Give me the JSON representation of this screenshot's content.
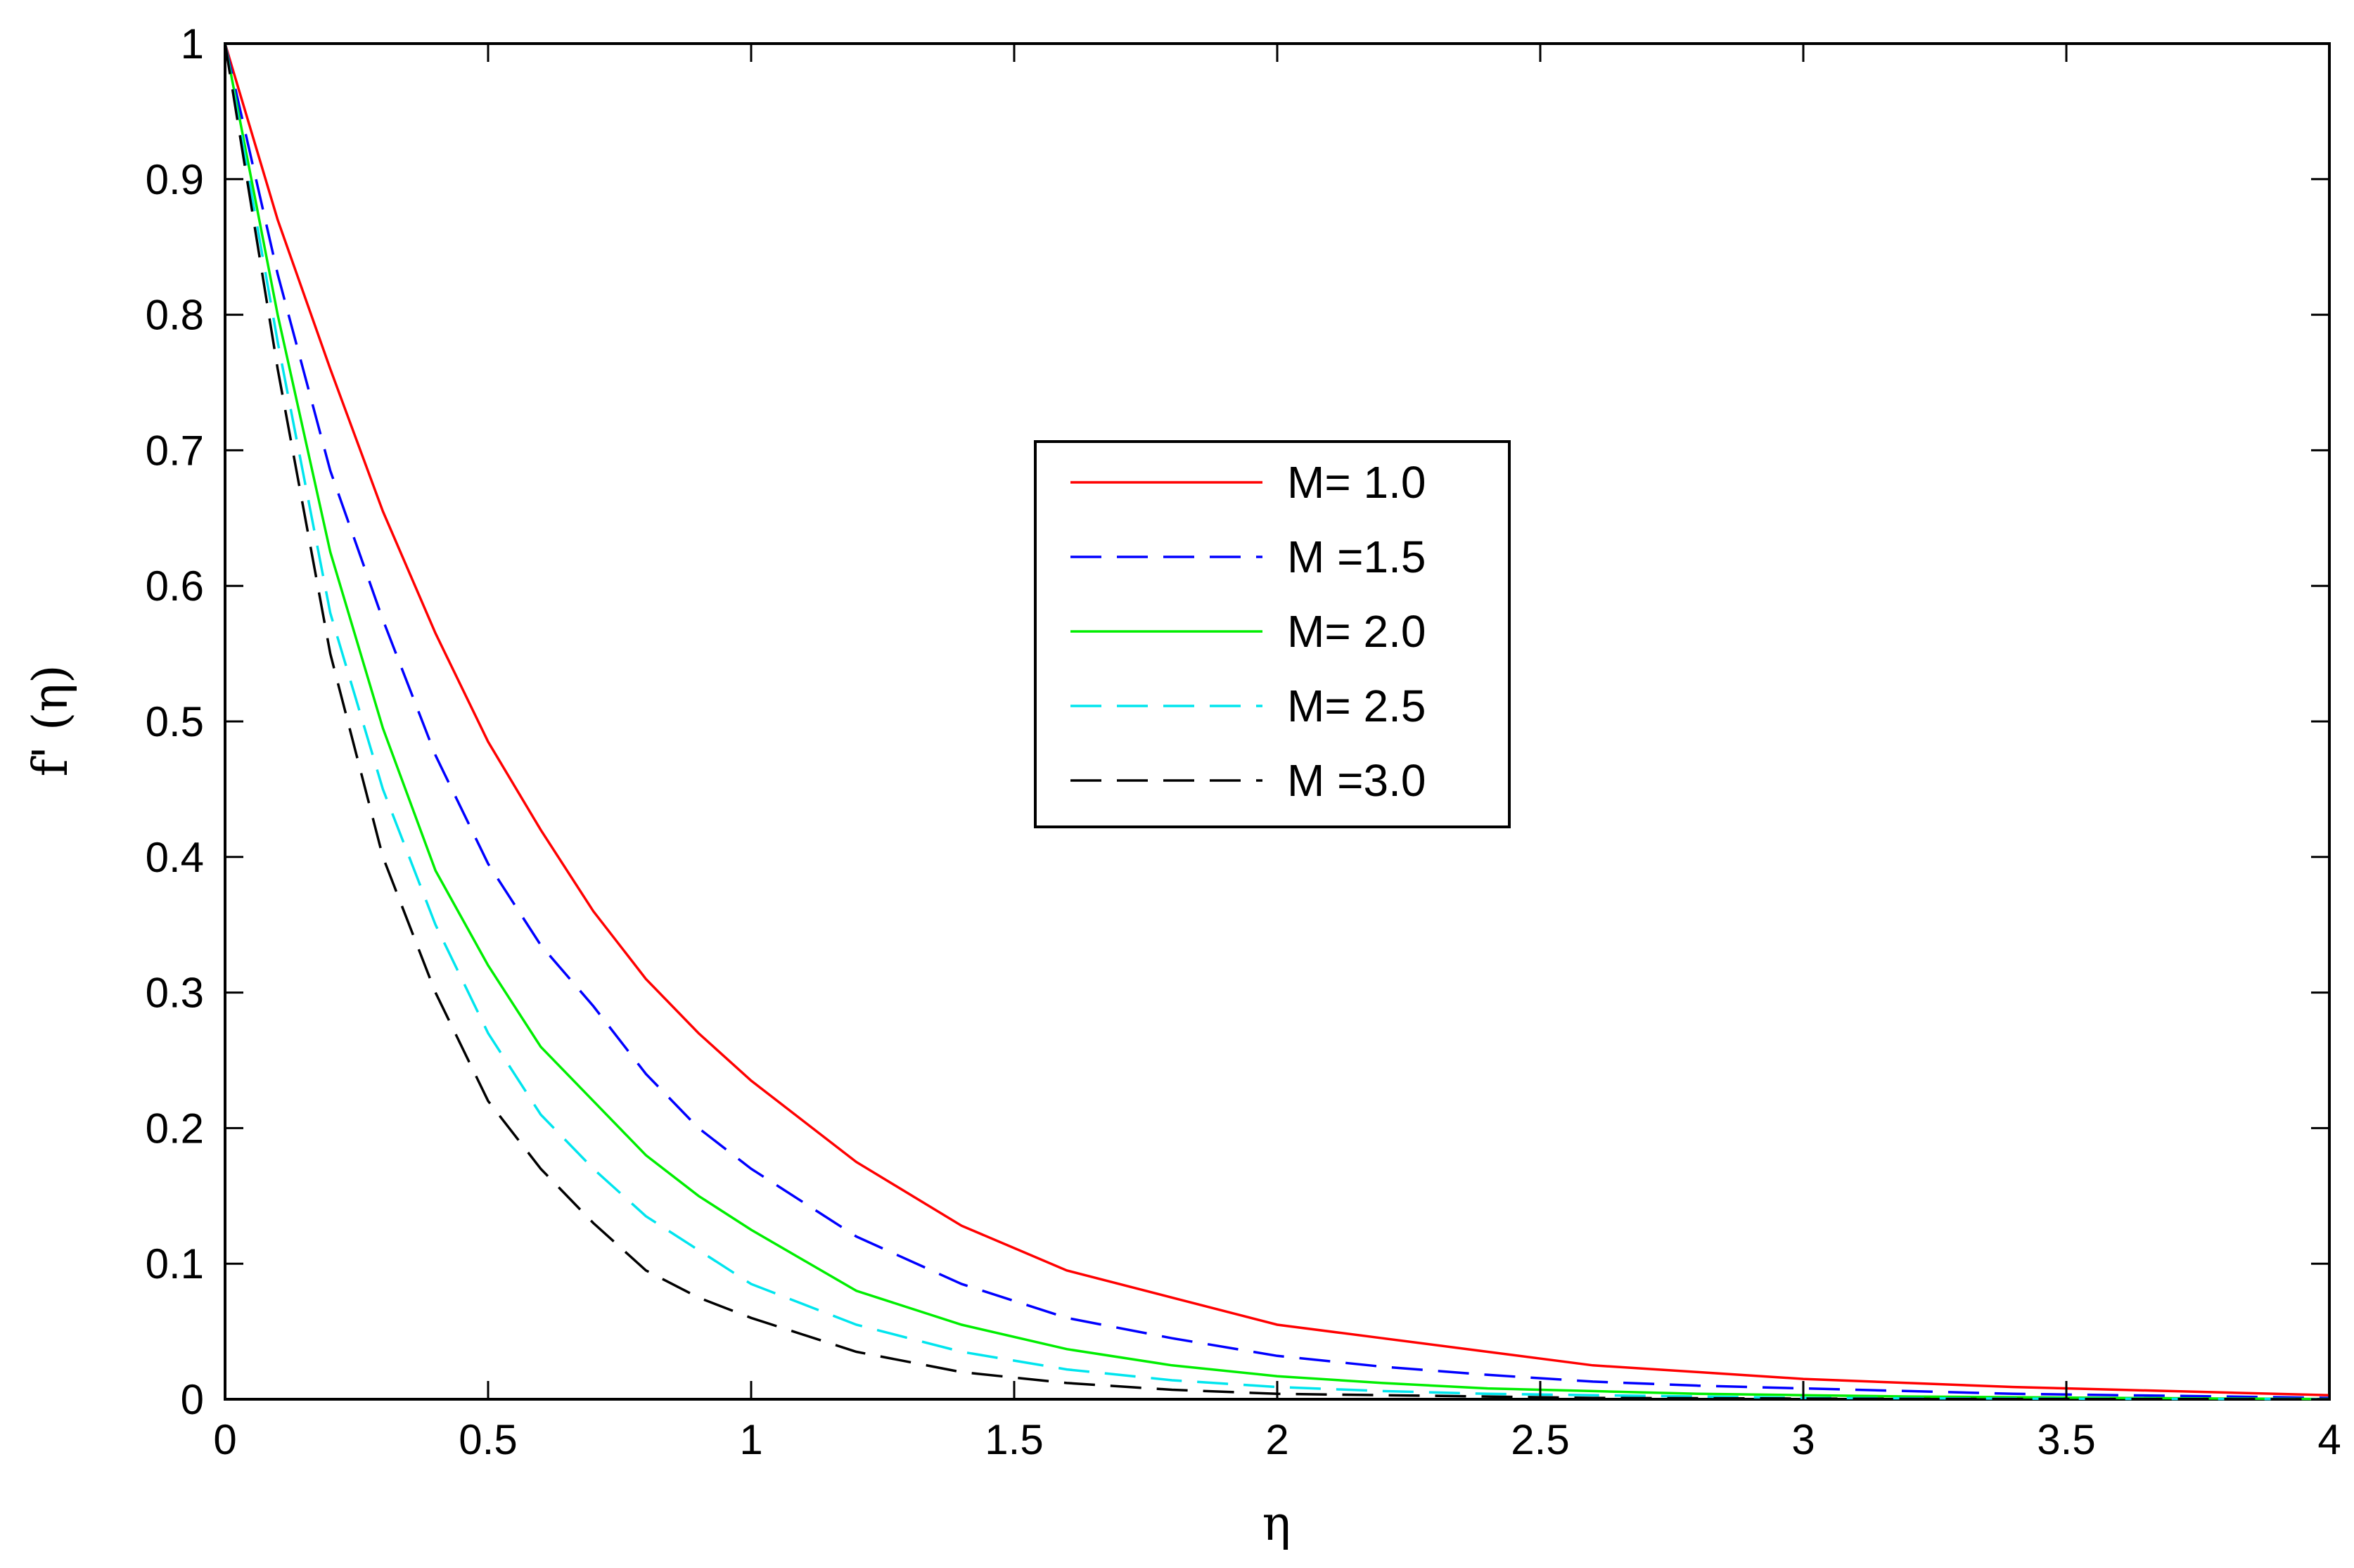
{
  "chart_data": {
    "type": "line",
    "title": "",
    "xlabel": "η",
    "ylabel": "f' (η)",
    "xlim": [
      0,
      4
    ],
    "ylim": [
      0,
      1
    ],
    "xticks": [
      0,
      0.5,
      1,
      1.5,
      2,
      2.5,
      3,
      3.5,
      4
    ],
    "xtick_labels": [
      "0",
      "0.5",
      "1",
      "1.5",
      "2",
      "2.5",
      "3",
      "3.5",
      "4"
    ],
    "yticks": [
      0,
      0.1,
      0.2,
      0.3,
      0.4,
      0.5,
      0.6,
      0.7,
      0.8,
      0.9,
      1
    ],
    "ytick_labels": [
      "0",
      "0.1",
      "0.2",
      "0.3",
      "0.4",
      "0.5",
      "0.6",
      "0.7",
      "0.8",
      "0.9",
      "1"
    ],
    "grid": false,
    "legend_position": "center",
    "x": [
      0,
      0.1,
      0.2,
      0.3,
      0.4,
      0.5,
      0.6,
      0.7,
      0.8,
      0.9,
      1.0,
      1.2,
      1.4,
      1.6,
      1.8,
      2.0,
      2.2,
      2.4,
      2.6,
      2.8,
      3.0,
      3.2,
      3.4,
      3.6,
      3.8,
      4.0
    ],
    "series": [
      {
        "name": "M= 1.0",
        "color": "#ff0000",
        "dash": "solid",
        "values": [
          1.0,
          0.87,
          0.76,
          0.655,
          0.565,
          0.485,
          0.42,
          0.36,
          0.31,
          0.27,
          0.235,
          0.175,
          0.128,
          0.095,
          0.075,
          0.055,
          0.045,
          0.035,
          0.025,
          0.02,
          0.015,
          0.012,
          0.009,
          0.007,
          0.005,
          0.003
        ]
      },
      {
        "name": "M =1.5",
        "color": "#0000ff",
        "dash": "dashed",
        "values": [
          1.0,
          0.83,
          0.685,
          0.575,
          0.475,
          0.395,
          0.335,
          0.29,
          0.24,
          0.2,
          0.17,
          0.12,
          0.085,
          0.06,
          0.045,
          0.032,
          0.024,
          0.018,
          0.013,
          0.01,
          0.008,
          0.006,
          0.004,
          0.003,
          0.002,
          0.001
        ]
      },
      {
        "name": "M= 2.0",
        "color": "#00ee00",
        "dash": "solid",
        "values": [
          1.0,
          0.8,
          0.625,
          0.495,
          0.39,
          0.32,
          0.26,
          0.22,
          0.18,
          0.15,
          0.125,
          0.08,
          0.055,
          0.037,
          0.025,
          0.017,
          0.012,
          0.008,
          0.006,
          0.004,
          0.003,
          0.002,
          0.0015,
          0.001,
          0.0005,
          0.0002
        ]
      },
      {
        "name": "M= 2.5",
        "color": "#00e5ee",
        "dash": "dashed",
        "values": [
          1.0,
          0.78,
          0.58,
          0.45,
          0.35,
          0.27,
          0.21,
          0.17,
          0.135,
          0.11,
          0.085,
          0.055,
          0.035,
          0.022,
          0.014,
          0.009,
          0.006,
          0.004,
          0.003,
          0.002,
          0.001,
          0.0008,
          0.0005,
          0.0003,
          0.0002,
          0.0001
        ]
      },
      {
        "name": "M =3.0",
        "color": "#000000",
        "dash": "dashed",
        "values": [
          1.0,
          0.76,
          0.55,
          0.4,
          0.3,
          0.22,
          0.17,
          0.13,
          0.095,
          0.075,
          0.06,
          0.035,
          0.02,
          0.012,
          0.007,
          0.004,
          0.003,
          0.002,
          0.001,
          0.0008,
          0.0005,
          0.0003,
          0.0002,
          0.0001,
          0.0001,
          0.0
        ]
      }
    ]
  }
}
